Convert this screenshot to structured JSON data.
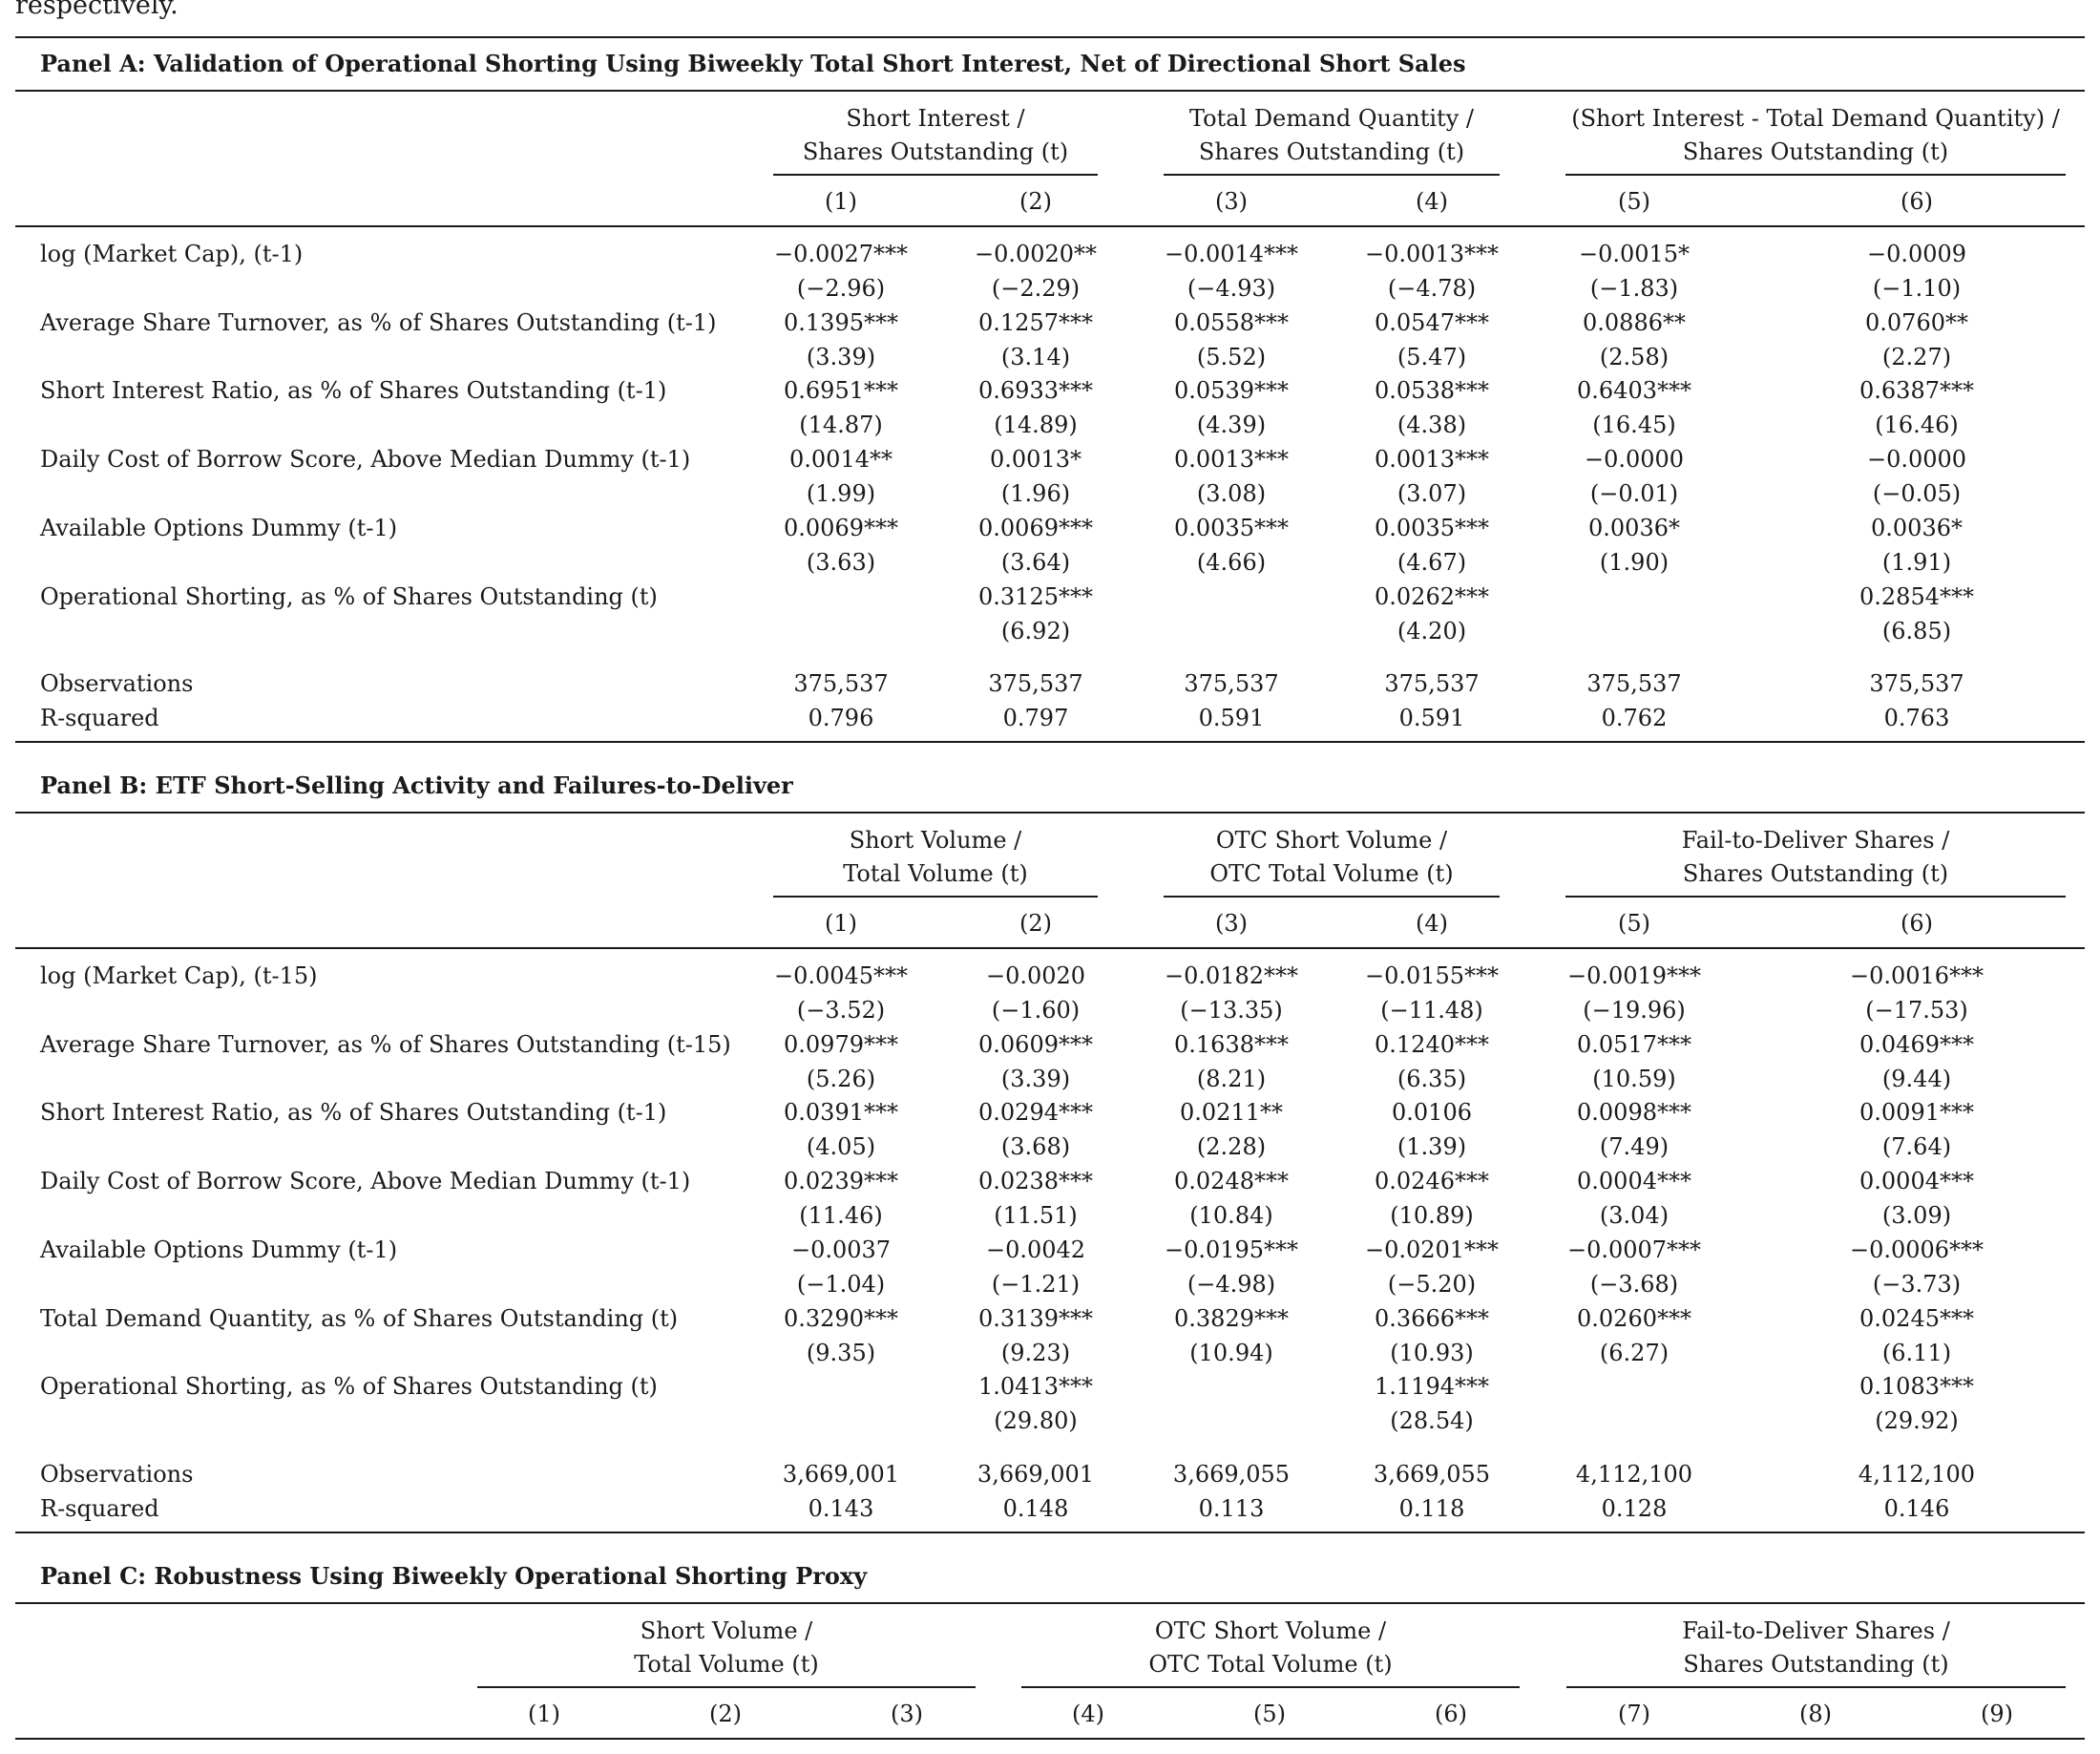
{
  "fragment": "respectively.",
  "panelA": {
    "title": "Panel A: Validation of Operational Shorting Using Biweekly Total Short Interest, Net of Directional Short Sales",
    "groups": [
      {
        "l1": "Short Interest /",
        "l2": "Shares Outstanding (t)"
      },
      {
        "l1": "Total Demand Quantity /",
        "l2": "Shares Outstanding (t)"
      },
      {
        "l1": "(Short Interest - Total Demand Quantity) /",
        "l2": "Shares Outstanding (t)"
      }
    ],
    "colnums": [
      "(1)",
      "(2)",
      "(3)",
      "(4)",
      "(5)",
      "(6)"
    ],
    "rows": [
      {
        "label": "log (Market Cap), (t-1)",
        "coef": [
          "−0.0027***",
          "−0.0020**",
          "−0.0014***",
          "−0.0013***",
          "−0.0015*",
          "−0.0009"
        ],
        "tstat": [
          "(−2.96)",
          "(−2.29)",
          "(−4.93)",
          "(−4.78)",
          "(−1.83)",
          "(−1.10)"
        ]
      },
      {
        "label": "Average Share Turnover, as % of Shares Outstanding (t-1)",
        "coef": [
          "0.1395***",
          "0.1257***",
          "0.0558***",
          "0.0547***",
          "0.0886**",
          "0.0760**"
        ],
        "tstat": [
          "(3.39)",
          "(3.14)",
          "(5.52)",
          "(5.47)",
          "(2.58)",
          "(2.27)"
        ]
      },
      {
        "label": "Short Interest Ratio, as % of Shares Outstanding (t-1)",
        "coef": [
          "0.6951***",
          "0.6933***",
          "0.0539***",
          "0.0538***",
          "0.6403***",
          "0.6387***"
        ],
        "tstat": [
          "(14.87)",
          "(14.89)",
          "(4.39)",
          "(4.38)",
          "(16.45)",
          "(16.46)"
        ]
      },
      {
        "label": "Daily Cost of Borrow Score, Above Median Dummy (t-1)",
        "coef": [
          "0.0014**",
          "0.0013*",
          "0.0013***",
          "0.0013***",
          "−0.0000",
          "−0.0000"
        ],
        "tstat": [
          "(1.99)",
          "(1.96)",
          "(3.08)",
          "(3.07)",
          "(−0.01)",
          "(−0.05)"
        ]
      },
      {
        "label": "Available Options Dummy (t-1)",
        "coef": [
          "0.0069***",
          "0.0069***",
          "0.0035***",
          "0.0035***",
          "0.0036*",
          "0.0036*"
        ],
        "tstat": [
          "(3.63)",
          "(3.64)",
          "(4.66)",
          "(4.67)",
          "(1.90)",
          "(1.91)"
        ]
      },
      {
        "label": "Operational Shorting, as % of Shares Outstanding (t)",
        "coef": [
          "",
          "0.3125***",
          "",
          "0.0262***",
          "",
          "0.2854***"
        ],
        "tstat": [
          "",
          "(6.92)",
          "",
          "(4.20)",
          "",
          "(6.85)"
        ]
      }
    ],
    "obs_label": "Observations",
    "obs": [
      "375,537",
      "375,537",
      "375,537",
      "375,537",
      "375,537",
      "375,537"
    ],
    "r2_label": "R-squared",
    "r2": [
      "0.796",
      "0.797",
      "0.591",
      "0.591",
      "0.762",
      "0.763"
    ]
  },
  "panelB": {
    "title": "Panel B: ETF Short-Selling Activity and Failures-to-Deliver",
    "groups": [
      {
        "l1": "Short Volume /",
        "l2": "Total Volume (t)"
      },
      {
        "l1": "OTC Short Volume /",
        "l2": "OTC Total Volume (t)"
      },
      {
        "l1": "Fail-to-Deliver Shares /",
        "l2": "Shares Outstanding (t)"
      }
    ],
    "colnums": [
      "(1)",
      "(2)",
      "(3)",
      "(4)",
      "(5)",
      "(6)"
    ],
    "rows": [
      {
        "label": "log (Market Cap), (t-15)",
        "coef": [
          "−0.0045***",
          "−0.0020",
          "−0.0182***",
          "−0.0155***",
          "−0.0019***",
          "−0.0016***"
        ],
        "tstat": [
          "(−3.52)",
          "(−1.60)",
          "(−13.35)",
          "(−11.48)",
          "(−19.96)",
          "(−17.53)"
        ]
      },
      {
        "label": "Average Share Turnover, as % of Shares Outstanding (t-15)",
        "coef": [
          "0.0979***",
          "0.0609***",
          "0.1638***",
          "0.1240***",
          "0.0517***",
          "0.0469***"
        ],
        "tstat": [
          "(5.26)",
          "(3.39)",
          "(8.21)",
          "(6.35)",
          "(10.59)",
          "(9.44)"
        ]
      },
      {
        "label": "Short Interest Ratio, as % of Shares Outstanding (t-1)",
        "coef": [
          "0.0391***",
          "0.0294***",
          "0.0211**",
          "0.0106",
          "0.0098***",
          "0.0091***"
        ],
        "tstat": [
          "(4.05)",
          "(3.68)",
          "(2.28)",
          "(1.39)",
          "(7.49)",
          "(7.64)"
        ]
      },
      {
        "label": "Daily Cost of Borrow Score, Above Median Dummy (t-1)",
        "coef": [
          "0.0239***",
          "0.0238***",
          "0.0248***",
          "0.0246***",
          "0.0004***",
          "0.0004***"
        ],
        "tstat": [
          "(11.46)",
          "(11.51)",
          "(10.84)",
          "(10.89)",
          "(3.04)",
          "(3.09)"
        ]
      },
      {
        "label": "Available Options Dummy (t-1)",
        "coef": [
          "−0.0037",
          "−0.0042",
          "−0.0195***",
          "−0.0201***",
          "−0.0007***",
          "−0.0006***"
        ],
        "tstat": [
          "(−1.04)",
          "(−1.21)",
          "(−4.98)",
          "(−5.20)",
          "(−3.68)",
          "(−3.73)"
        ]
      },
      {
        "label": "Total Demand Quantity, as % of Shares Outstanding (t)",
        "coef": [
          "0.3290***",
          "0.3139***",
          "0.3829***",
          "0.3666***",
          "0.0260***",
          "0.0245***"
        ],
        "tstat": [
          "(9.35)",
          "(9.23)",
          "(10.94)",
          "(10.93)",
          "(6.27)",
          "(6.11)"
        ]
      },
      {
        "label": "Operational Shorting, as % of Shares Outstanding (t)",
        "coef": [
          "",
          "1.0413***",
          "",
          "1.1194***",
          "",
          "0.1083***"
        ],
        "tstat": [
          "",
          "(29.80)",
          "",
          "(28.54)",
          "",
          "(29.92)"
        ]
      }
    ],
    "obs_label": "Observations",
    "obs": [
      "3,669,001",
      "3,669,001",
      "3,669,055",
      "3,669,055",
      "4,112,100",
      "4,112,100"
    ],
    "r2_label": "R-squared",
    "r2": [
      "0.143",
      "0.148",
      "0.113",
      "0.118",
      "0.128",
      "0.146"
    ]
  },
  "panelC": {
    "title": "Panel C: Robustness Using Biweekly Operational Shorting Proxy",
    "groups": [
      {
        "l1": "Short Volume /",
        "l2": "Total Volume (t)"
      },
      {
        "l1": "OTC Short Volume /",
        "l2": "OTC Total Volume (t)"
      },
      {
        "l1": "Fail-to-Deliver Shares /",
        "l2": "Shares Outstanding (t)"
      }
    ],
    "colnums": [
      "(1)",
      "(2)",
      "(3)",
      "(4)",
      "(5)",
      "(6)",
      "(7)",
      "(8)",
      "(9)"
    ]
  }
}
